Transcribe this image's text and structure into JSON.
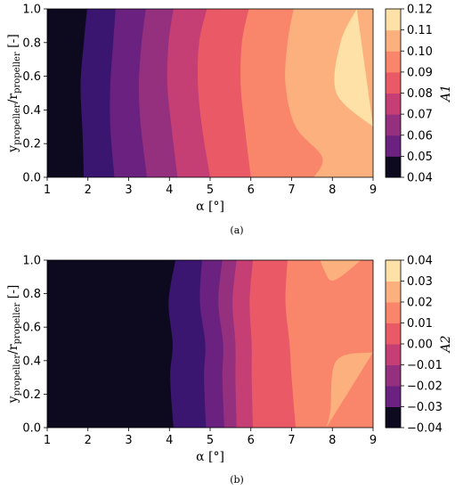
{
  "chart_data": [
    {
      "type": "contour",
      "caption": "(a)",
      "xlabel": "α [°]",
      "ylabel_main": "y",
      "ylabel_sub": "propeller",
      "ylabel_main2": "/r",
      "ylabel_sub2": "propeller",
      "ylabel_tail": "[-]",
      "colorbar_label": "A1",
      "xlim": [
        1,
        9
      ],
      "ylim": [
        0,
        1
      ],
      "xticks": [
        "1",
        "2",
        "3",
        "4",
        "5",
        "6",
        "7",
        "8",
        "9"
      ],
      "yticks": [
        "0.0",
        "0.2",
        "0.4",
        "0.6",
        "0.8",
        "1.0"
      ],
      "colorbar_ticks": [
        "0.04",
        "0.05",
        "0.06",
        "0.07",
        "0.08",
        "0.09",
        "0.10",
        "0.11",
        "0.12"
      ],
      "levels": [
        0.04,
        0.05,
        0.06,
        0.07,
        0.08,
        0.09,
        0.1,
        0.11,
        0.12
      ],
      "level_colors": [
        "#0d0a1f",
        "#3a1670",
        "#6a2180",
        "#95307f",
        "#c53e74",
        "#ea5a66",
        "#f9866a",
        "#fbb07e",
        "#fde1a6"
      ],
      "boundaries": [
        {
          "level": 0.05,
          "points": [
            [
              1.9,
              0.0
            ],
            [
              1.87,
              0.25
            ],
            [
              1.82,
              0.55
            ],
            [
              1.9,
              0.8
            ],
            [
              1.98,
              1.0
            ]
          ]
        },
        {
          "level": 0.06,
          "points": [
            [
              2.65,
              0.0
            ],
            [
              2.55,
              0.3
            ],
            [
              2.55,
              0.55
            ],
            [
              2.62,
              0.8
            ],
            [
              2.68,
              1.0
            ]
          ]
        },
        {
          "level": 0.07,
          "points": [
            [
              3.45,
              0.0
            ],
            [
              3.3,
              0.3
            ],
            [
              3.25,
              0.55
            ],
            [
              3.32,
              0.8
            ],
            [
              3.42,
              1.0
            ]
          ]
        },
        {
          "level": 0.08,
          "points": [
            [
              4.2,
              0.0
            ],
            [
              4.05,
              0.3
            ],
            [
              3.95,
              0.55
            ],
            [
              3.98,
              0.8
            ],
            [
              4.1,
              1.0
            ]
          ]
        },
        {
          "level": 0.09,
          "points": [
            [
              5.0,
              0.0
            ],
            [
              4.8,
              0.3
            ],
            [
              4.7,
              0.55
            ],
            [
              4.73,
              0.8
            ],
            [
              4.92,
              1.0
            ]
          ]
        },
        {
          "level": 0.1,
          "points": [
            [
              6.0,
              0.0
            ],
            [
              5.85,
              0.3
            ],
            [
              5.75,
              0.55
            ],
            [
              5.78,
              0.8
            ],
            [
              5.95,
              1.0
            ]
          ]
        },
        {
          "level": 0.11,
          "points": [
            [
              7.55,
              0.0
            ],
            [
              7.75,
              0.12
            ],
            [
              7.1,
              0.3
            ],
            [
              6.85,
              0.55
            ],
            [
              6.9,
              0.8
            ],
            [
              7.05,
              1.0
            ]
          ]
        },
        {
          "level": 0.12,
          "points": [
            [
              9.0,
              0.3
            ],
            [
              8.1,
              0.5
            ],
            [
              8.2,
              0.8
            ],
            [
              8.6,
              1.0
            ]
          ]
        }
      ]
    },
    {
      "type": "contour",
      "caption": "(b)",
      "xlabel": "α [°]",
      "ylabel_main": "y",
      "ylabel_sub": "propeller",
      "ylabel_main2": "/r",
      "ylabel_sub2": "propeller",
      "ylabel_tail": "[-]",
      "colorbar_label": "A2",
      "xlim": [
        1,
        9
      ],
      "ylim": [
        0,
        1
      ],
      "xticks": [
        "1",
        "2",
        "3",
        "4",
        "5",
        "6",
        "7",
        "8",
        "9"
      ],
      "yticks": [
        "0.0",
        "0.2",
        "0.4",
        "0.6",
        "0.8",
        "1.0"
      ],
      "colorbar_ticks": [
        "0.04",
        "0.03",
        "0.02",
        "0.01",
        "0.00",
        "−0.01",
        "−0.02",
        "−0.03",
        "−0.04"
      ],
      "levels": [
        -0.04,
        -0.03,
        -0.02,
        -0.01,
        0.0,
        0.01,
        0.02,
        0.03,
        0.04
      ],
      "level_colors": [
        "#0d0a1f",
        "#3a1670",
        "#6a2180",
        "#95307f",
        "#c53e74",
        "#ea5a66",
        "#f9866a",
        "#fbb07e",
        "#fde1a6"
      ],
      "boundaries": [
        {
          "level": -0.03,
          "points": [
            [
              4.1,
              0.0
            ],
            [
              4.02,
              0.3
            ],
            [
              4.08,
              0.5
            ],
            [
              3.98,
              0.75
            ],
            [
              4.15,
              1.0
            ]
          ]
        },
        {
          "level": -0.02,
          "points": [
            [
              4.9,
              0.0
            ],
            [
              4.85,
              0.3
            ],
            [
              4.88,
              0.5
            ],
            [
              4.75,
              0.75
            ],
            [
              4.8,
              1.0
            ]
          ]
        },
        {
          "level": -0.01,
          "points": [
            [
              5.35,
              0.0
            ],
            [
              5.3,
              0.3
            ],
            [
              5.32,
              0.5
            ],
            [
              5.2,
              0.75
            ],
            [
              5.3,
              1.0
            ]
          ]
        },
        {
          "level": 0.0,
          "points": [
            [
              5.65,
              0.0
            ],
            [
              5.62,
              0.3
            ],
            [
              5.62,
              0.5
            ],
            [
              5.55,
              0.75
            ],
            [
              5.65,
              1.0
            ]
          ]
        },
        {
          "level": 0.01,
          "points": [
            [
              6.05,
              0.0
            ],
            [
              6.02,
              0.3
            ],
            [
              6.02,
              0.5
            ],
            [
              5.97,
              0.75
            ],
            [
              6.05,
              1.0
            ]
          ]
        },
        {
          "level": 0.02,
          "points": [
            [
              7.1,
              0.0
            ],
            [
              7.0,
              0.3
            ],
            [
              6.95,
              0.5
            ],
            [
              6.85,
              0.75
            ],
            [
              6.9,
              1.0
            ]
          ]
        },
        {
          "level": 0.03,
          "points": [
            [
              9.0,
              0.45
            ],
            [
              8.1,
              0.4
            ],
            [
              7.95,
              0.1
            ],
            [
              7.85,
              0.0
            ]
          ]
        },
        {
          "level": 0.03,
          "points": [
            [
              8.7,
              1.0
            ],
            [
              8.2,
              0.9
            ],
            [
              7.95,
              0.88
            ],
            [
              7.8,
              0.94
            ],
            [
              7.7,
              1.0
            ]
          ]
        }
      ]
    }
  ]
}
